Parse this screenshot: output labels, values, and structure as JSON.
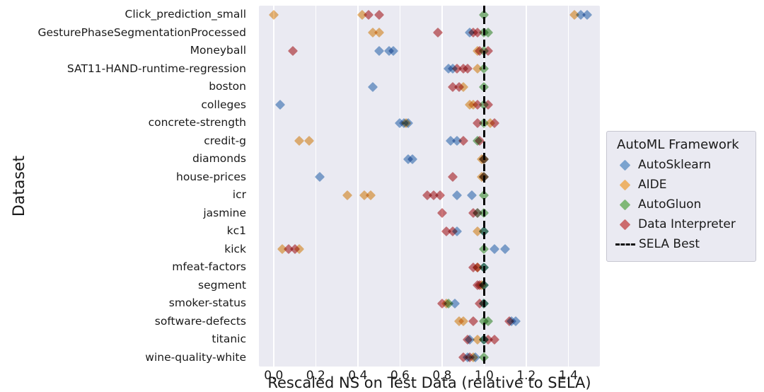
{
  "chart_data": {
    "type": "scatter",
    "title": "",
    "xlabel": "Rescaled NS on Test Data (relative to SELA)",
    "ylabel": "Dataset",
    "xlim": [
      -0.07,
      1.55
    ],
    "xticks": [
      0.0,
      0.2,
      0.4,
      0.6,
      0.8,
      1.0,
      1.2,
      1.4
    ],
    "xtick_labels": [
      "0.0",
      "0.2",
      "0.4",
      "0.6",
      "0.8",
      "1.0",
      "1.2",
      "1.4"
    ],
    "grid": "vertical-white-gridlines",
    "plot_background": "#eaeaf2",
    "marker_shape": "diamond",
    "categories": [
      "Click_prediction_small",
      "GesturePhaseSegmentationProcessed",
      "Moneyball",
      "SAT11-HAND-runtime-regression",
      "boston",
      "colleges",
      "concrete-strength",
      "credit-g",
      "diamonds",
      "house-prices",
      "icr",
      "jasmine",
      "kc1",
      "kick",
      "mfeat-factors",
      "segment",
      "smoker-status",
      "software-defects",
      "titanic",
      "wine-quality-white"
    ],
    "reference_line": {
      "x": 1.0,
      "label": "SELA Best",
      "color": "#000000",
      "style": "dashed"
    },
    "legend": {
      "title": "AutoML Framework",
      "position": "right",
      "entries": [
        {
          "label": "AutoSklearn",
          "marker": "diamond",
          "color": "#7ba3cf"
        },
        {
          "label": "AIDE",
          "marker": "diamond",
          "color": "#edb36a"
        },
        {
          "label": "AutoGluon",
          "marker": "diamond",
          "color": "#7fb877"
        },
        {
          "label": "Data Interpreter",
          "marker": "diamond",
          "color": "#cc6b6e"
        },
        {
          "label": "SELA Best",
          "marker": "dashed-line",
          "color": "#000000"
        }
      ]
    },
    "series": [
      {
        "name": "AutoSklearn",
        "color": "#7ba3cf",
        "values": [
          [
            1.46,
            1.49
          ],
          [
            0.93
          ],
          [
            0.5,
            0.55,
            0.57
          ],
          [
            0.83,
            0.85
          ],
          [
            0.47
          ],
          [
            0.03
          ],
          [
            0.6,
            0.62,
            0.64
          ],
          [
            0.84,
            0.87
          ],
          [
            0.64,
            0.66
          ],
          [
            0.22
          ],
          [
            0.87,
            0.94
          ],
          [
            0.97
          ],
          [
            0.87,
            1.0
          ],
          [
            1.05,
            1.1
          ],
          [
            1.0
          ],
          [
            1.0
          ],
          [
            0.86,
            1.0
          ],
          [
            1.13,
            1.15
          ],
          [
            0.93,
            1.0
          ],
          [
            0.92,
            0.96
          ]
        ]
      },
      {
        "name": "AIDE",
        "color": "#edb36a",
        "values": [
          [
            0.0,
            0.42,
            1.43
          ],
          [
            0.47,
            0.5
          ],
          [
            0.97
          ],
          [
            0.97
          ],
          [
            0.9
          ],
          [
            0.93,
            0.95
          ],
          [
            0.63,
            1.03
          ],
          [
            0.12,
            0.17
          ],
          [
            0.99
          ],
          [
            0.99
          ],
          [
            0.35,
            0.43,
            0.46
          ],
          [
            0.97
          ],
          [
            0.97
          ],
          [
            0.04,
            0.12
          ],
          [
            0.97
          ],
          [
            0.99
          ],
          [
            0.82
          ],
          [
            0.88,
            0.9
          ],
          [
            0.97
          ],
          [
            0.95
          ]
        ]
      },
      {
        "name": "AutoGluon",
        "color": "#7fb877",
        "values": [
          [
            1.0
          ],
          [
            1.0,
            1.02
          ],
          [
            1.0
          ],
          [
            1.0
          ],
          [
            1.0
          ],
          [
            1.0
          ],
          [
            1.0
          ],
          [
            0.97
          ],
          [
            1.0
          ],
          [
            1.0
          ],
          [
            1.0
          ],
          [
            1.0
          ],
          [
            1.0
          ],
          [
            1.0
          ],
          [
            1.0
          ],
          [
            1.0
          ],
          [
            0.83,
            1.0
          ],
          [
            1.0,
            1.02
          ],
          [
            1.0
          ],
          [
            1.0
          ]
        ]
      },
      {
        "name": "Data Interpreter",
        "color": "#cc6b6e",
        "values": [
          [
            0.45,
            0.5
          ],
          [
            0.78,
            0.95,
            0.97
          ],
          [
            0.09,
            0.98,
            1.02
          ],
          [
            0.87,
            0.9,
            0.92
          ],
          [
            0.85,
            0.88
          ],
          [
            0.97,
            1.02
          ],
          [
            0.97,
            1.05
          ],
          [
            0.9,
            0.98
          ],
          [
            1.0
          ],
          [
            0.85,
            1.0
          ],
          [
            0.73,
            0.76,
            0.79
          ],
          [
            0.8,
            0.95
          ],
          [
            0.82,
            0.85
          ],
          [
            0.07,
            0.1
          ],
          [
            0.95,
            0.97
          ],
          [
            0.97,
            0.98
          ],
          [
            0.8,
            0.98
          ],
          [
            0.95,
            1.12
          ],
          [
            0.92,
            1.02,
            1.05
          ],
          [
            0.9,
            0.93
          ]
        ]
      }
    ]
  }
}
